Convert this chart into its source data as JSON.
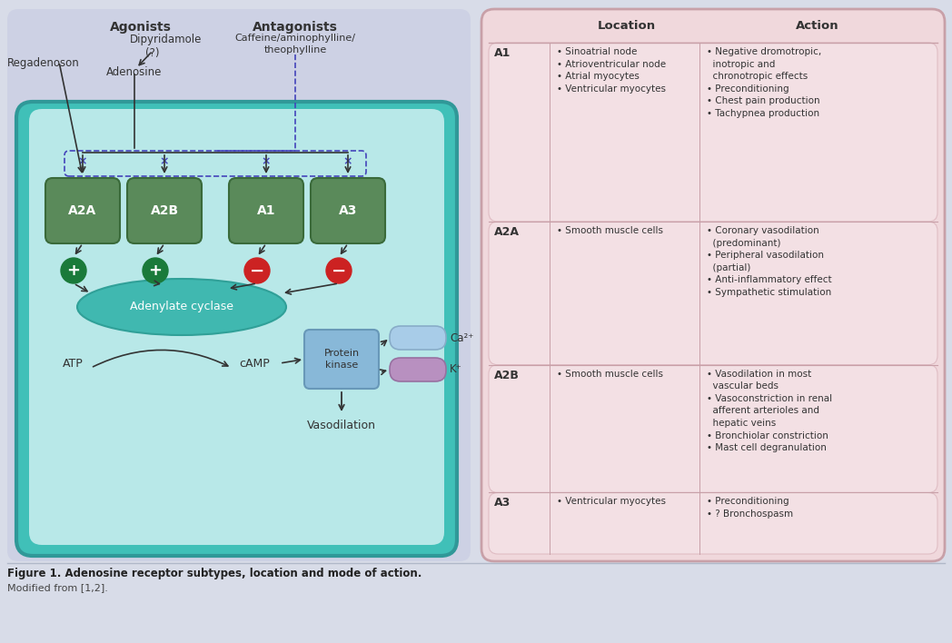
{
  "fig_bg": "#d8dce8",
  "caption_bold": "Figure 1. Adenosine receptor subtypes, location and mode of action.",
  "caption_normal": "Modified from [1,2].",
  "left_bg_color": "#d0d4e4",
  "outer_teal": "#40c0b8",
  "inner_light": "#b8e8e8",
  "receptor_face": "#5a8a5a",
  "receptor_edge": "#3a6a3a",
  "receptor_text": "#ffffff",
  "receptor_labels": [
    "A2A",
    "A2B",
    "A1",
    "A3"
  ],
  "adenylate_face": "#40b8b0",
  "adenylate_edge": "#30a098",
  "pk_face": "#88b8d8",
  "pk_edge": "#6898b8",
  "ca_face": "#a8cce8",
  "ca_edge": "#88acC8",
  "k_face": "#b890c0",
  "k_edge": "#9870a0",
  "plus_color": "#1a7a3a",
  "minus_color": "#cc2222",
  "arrow_color": "#333333",
  "dashed_color": "#4444bb",
  "text_color": "#333333",
  "right_bg": "#f0d8dc",
  "right_border": "#c8a0a8",
  "right_inner": "#f5e4e8",
  "right_inner_edge": "#d8b0b8"
}
